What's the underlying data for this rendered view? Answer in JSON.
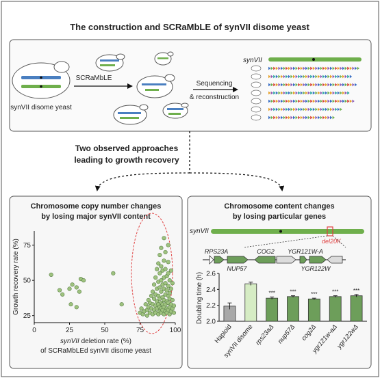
{
  "header": {
    "title": "The construction and SCRaMbLE of synVII disome yeast"
  },
  "top": {
    "disome_label": "synVII disome yeast",
    "scramble_label": "SCRaMbLE",
    "seq_label_1": "Sequencing",
    "seq_label_2": "& reconstruction",
    "synvii_label": "synVII"
  },
  "middle": {
    "line1": "Two observed approaches",
    "line2": "leading to growth recovery"
  },
  "left_panel": {
    "title1": "Chromosome copy number changes",
    "title2": "by losing major synVII content"
  },
  "right_panel": {
    "title1": "Chromosome content changes",
    "title2": "by losing particular genes",
    "synvii_label": "synVII",
    "del_label": "del20K",
    "genes": {
      "rps23a": "RPS23A",
      "cog2": "COG2",
      "ygr121wa": "YGR121W-A",
      "nup57": "NUP57",
      "ygr122w": "YGR122W"
    }
  },
  "chart_data": [
    {
      "type": "scatter",
      "xlabel_italic": "synVII",
      "xlabel_rest": " deletion rate  (%)",
      "xlabel_line2": "of SCRaMbLEd synVII disome yeast",
      "ylabel": "Growth recovery rate (%)",
      "xlim": [
        0,
        100
      ],
      "ylim": [
        20,
        85
      ],
      "xticks": [
        "0",
        "25",
        "50",
        "75",
        "100"
      ],
      "yticks": [
        "25",
        "50",
        "75"
      ],
      "points": [
        [
          12,
          54
        ],
        [
          18,
          43
        ],
        [
          20,
          40
        ],
        [
          25,
          44
        ],
        [
          27,
          47
        ],
        [
          30,
          45
        ],
        [
          32,
          42
        ],
        [
          33,
          51
        ],
        [
          35,
          50
        ],
        [
          26,
          33
        ],
        [
          30,
          31
        ],
        [
          56,
          55
        ],
        [
          62,
          33
        ],
        [
          75,
          27
        ],
        [
          76,
          30
        ],
        [
          77,
          26
        ],
        [
          78,
          28
        ],
        [
          79,
          33
        ],
        [
          80,
          25
        ],
        [
          80,
          29
        ],
        [
          81,
          31
        ],
        [
          81,
          36
        ],
        [
          82,
          27
        ],
        [
          82,
          34
        ],
        [
          83,
          30
        ],
        [
          83,
          39
        ],
        [
          84,
          26
        ],
        [
          84,
          33
        ],
        [
          84,
          42
        ],
        [
          85,
          29
        ],
        [
          85,
          37
        ],
        [
          85,
          47
        ],
        [
          86,
          27
        ],
        [
          86,
          32
        ],
        [
          86,
          40
        ],
        [
          86,
          52
        ],
        [
          87,
          30
        ],
        [
          87,
          35
        ],
        [
          87,
          44
        ],
        [
          87,
          58
        ],
        [
          88,
          26
        ],
        [
          88,
          33
        ],
        [
          88,
          39
        ],
        [
          88,
          49
        ],
        [
          88,
          62
        ],
        [
          89,
          28
        ],
        [
          89,
          31
        ],
        [
          89,
          37
        ],
        [
          89,
          45
        ],
        [
          89,
          55
        ],
        [
          89,
          68
        ],
        [
          90,
          27
        ],
        [
          90,
          30
        ],
        [
          90,
          34
        ],
        [
          90,
          42
        ],
        [
          90,
          50
        ],
        [
          90,
          60
        ],
        [
          90,
          73
        ],
        [
          91,
          29
        ],
        [
          91,
          33
        ],
        [
          91,
          38
        ],
        [
          91,
          47
        ],
        [
          91,
          57
        ],
        [
          92,
          26
        ],
        [
          92,
          31
        ],
        [
          92,
          36
        ],
        [
          92,
          44
        ],
        [
          92,
          52
        ],
        [
          92,
          64
        ],
        [
          92,
          80
        ],
        [
          93,
          28
        ],
        [
          93,
          33
        ],
        [
          93,
          40
        ],
        [
          93,
          48
        ],
        [
          93,
          58
        ],
        [
          93,
          70
        ],
        [
          94,
          27
        ],
        [
          94,
          30
        ],
        [
          94,
          35
        ],
        [
          94,
          43
        ],
        [
          94,
          53
        ],
        [
          95,
          29
        ],
        [
          95,
          34
        ],
        [
          95,
          39
        ],
        [
          95,
          46
        ],
        [
          95,
          55
        ],
        [
          95,
          63
        ],
        [
          95,
          75
        ],
        [
          96,
          26
        ],
        [
          96,
          31
        ],
        [
          96,
          37
        ],
        [
          96,
          41
        ],
        [
          96,
          50
        ],
        [
          97,
          28
        ],
        [
          97,
          33
        ],
        [
          97,
          44
        ],
        [
          97,
          57
        ],
        [
          98,
          30
        ],
        [
          98,
          36
        ],
        [
          98,
          48
        ],
        [
          99,
          27
        ],
        [
          99,
          32
        ]
      ]
    },
    {
      "type": "bar",
      "ylabel": "Doubling time (h)",
      "ylim": [
        2.0,
        2.6
      ],
      "yticks": [
        "2.0",
        "2.2",
        "2.4",
        "2.6"
      ],
      "categories": [
        "Haploid",
        "synVII disome",
        "rps23aΔ",
        "nup57Δ",
        "cog2Δ",
        "ygr121w-aΔ",
        "ygr122wΔ"
      ],
      "values": [
        2.19,
        2.47,
        2.29,
        2.31,
        2.28,
        2.31,
        2.32
      ],
      "errors": [
        0.04,
        0.02,
        0.015,
        0.01,
        0.01,
        0.01,
        0.015
      ],
      "significance": [
        "",
        "",
        "***",
        "***",
        "***",
        "***",
        "***"
      ],
      "colors": [
        "#a8a8a8",
        "#d6ecc4",
        "#6d9e5a",
        "#6d9e5a",
        "#6d9e5a",
        "#6d9e5a",
        "#6d9e5a"
      ]
    }
  ]
}
